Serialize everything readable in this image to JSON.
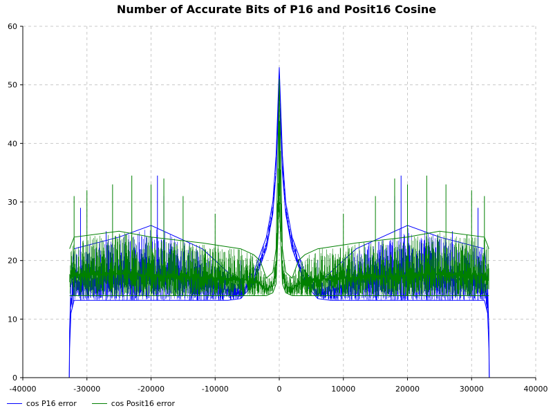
{
  "chart_data": {
    "type": "line",
    "title": "Number of Accurate Bits of P16 and Posit16 Cosine",
    "xlabel": "",
    "ylabel": "",
    "xlim": [
      -40000,
      40000
    ],
    "ylim": [
      0,
      60
    ],
    "xticks": [
      -40000,
      -30000,
      -20000,
      -10000,
      0,
      10000,
      20000,
      30000,
      40000
    ],
    "yticks": [
      0,
      10,
      20,
      30,
      40,
      50,
      60
    ],
    "grid": true,
    "legend_position": "bottom-left",
    "series": [
      {
        "name": "cos P16 error",
        "color": "#0000ff",
        "envelope": {
          "x": [
            -32760,
            -32700,
            -32500,
            -32000,
            -25000,
            -20000,
            -12000,
            -8000,
            -6000,
            -4000,
            -2000,
            -1000,
            -500,
            0,
            500,
            1000,
            2000,
            4000,
            6000,
            8000,
            12000,
            20000,
            25000,
            32000,
            32500,
            32700,
            32760
          ],
          "y_lower": [
            0,
            5,
            11,
            13.2,
            13.2,
            13.2,
            13.2,
            13.2,
            13.5,
            16,
            22,
            28,
            35,
            50,
            35,
            28,
            22,
            16,
            13.5,
            13.2,
            13.2,
            13.2,
            13.2,
            13.2,
            11,
            5,
            0
          ],
          "y_upper": [
            0,
            8,
            16,
            22,
            24,
            26,
            22,
            18,
            16,
            18,
            24,
            30,
            38,
            53,
            38,
            30,
            24,
            18,
            16,
            18,
            22,
            26,
            24,
            22,
            16,
            8,
            0
          ]
        },
        "peaks": [
          {
            "x": -31000,
            "y": 29
          },
          {
            "x": -27000,
            "y": 25
          },
          {
            "x": -23000,
            "y": 24
          },
          {
            "x": -20000,
            "y": 28
          },
          {
            "x": -19000,
            "y": 34.5
          },
          {
            "x": -18000,
            "y": 31
          },
          {
            "x": -14000,
            "y": 23
          },
          {
            "x": -6000,
            "y": 20
          },
          {
            "x": 6000,
            "y": 20
          },
          {
            "x": 14000,
            "y": 23
          },
          {
            "x": 18000,
            "y": 31
          },
          {
            "x": 19000,
            "y": 34.5
          },
          {
            "x": 20000,
            "y": 28
          },
          {
            "x": 23000,
            "y": 24
          },
          {
            "x": 27000,
            "y": 25
          },
          {
            "x": 31000,
            "y": 29
          }
        ]
      },
      {
        "name": "cos Posit16 error",
        "color": "#008000",
        "envelope": {
          "x": [
            -32700,
            -32000,
            -25000,
            -20000,
            -12000,
            -6000,
            -4000,
            -3000,
            -2000,
            -1000,
            -500,
            0,
            500,
            1000,
            2000,
            3000,
            4000,
            6000,
            12000,
            20000,
            25000,
            32000,
            32700
          ],
          "y_lower": [
            14,
            14,
            14,
            14,
            14,
            14,
            14,
            14,
            14,
            14.5,
            16,
            30,
            16,
            14.5,
            14,
            14,
            14,
            14,
            14,
            14,
            14,
            14,
            14
          ],
          "y_upper": [
            22,
            24,
            25,
            24,
            23,
            22,
            21,
            20,
            17,
            18,
            22,
            51,
            22,
            18,
            17,
            20,
            21,
            22,
            23,
            24,
            25,
            24,
            22
          ]
        },
        "peaks": [
          {
            "x": -32000,
            "y": 31
          },
          {
            "x": -30000,
            "y": 32
          },
          {
            "x": -26000,
            "y": 33
          },
          {
            "x": -23000,
            "y": 34.5
          },
          {
            "x": -20000,
            "y": 33
          },
          {
            "x": -18000,
            "y": 34
          },
          {
            "x": -15000,
            "y": 31
          },
          {
            "x": -10000,
            "y": 28
          },
          {
            "x": 10000,
            "y": 28
          },
          {
            "x": 15000,
            "y": 31
          },
          {
            "x": 18000,
            "y": 34
          },
          {
            "x": 20000,
            "y": 33
          },
          {
            "x": 23000,
            "y": 34.5
          },
          {
            "x": 26000,
            "y": 33
          },
          {
            "x": 30000,
            "y": 32
          },
          {
            "x": 32000,
            "y": 31
          }
        ]
      }
    ]
  }
}
